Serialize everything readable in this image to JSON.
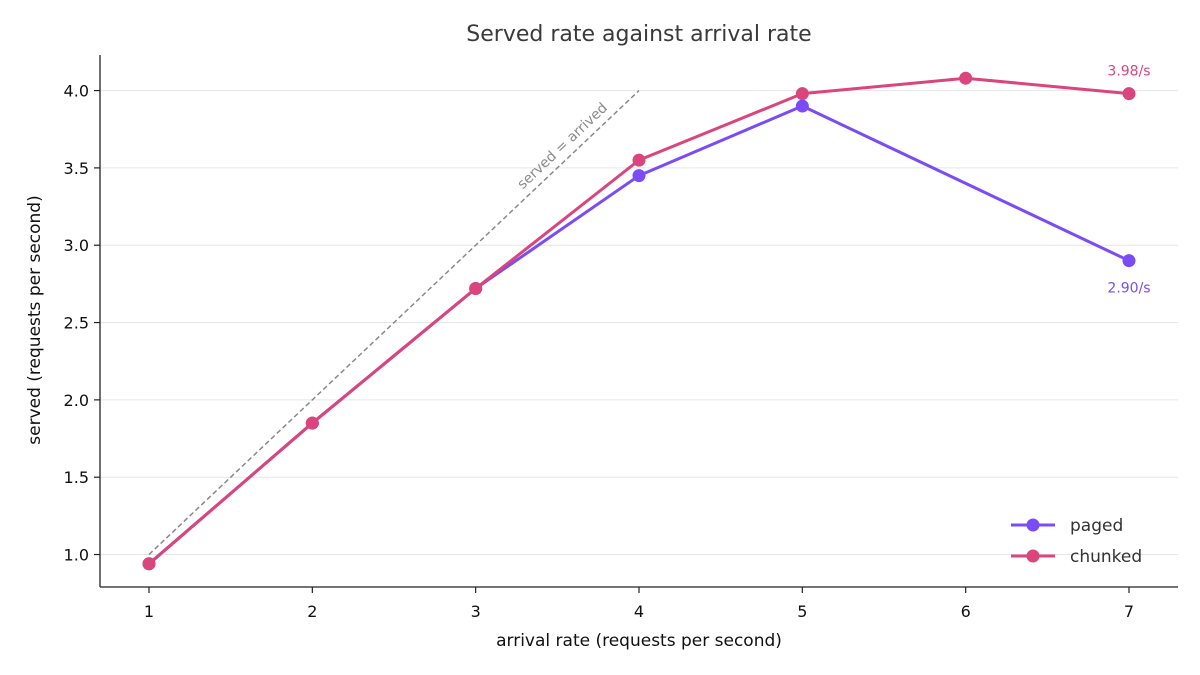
{
  "chart_data": {
    "type": "line",
    "title": "Served rate against arrival rate",
    "xlabel": "arrival rate (requests per second)",
    "ylabel": "served (requests per second)",
    "x": [
      1,
      2,
      3,
      4,
      5,
      6,
      7
    ],
    "xlim": [
      0.7,
      7.3
    ],
    "ylim": [
      0.79,
      4.23
    ],
    "xticks": [
      "1",
      "2",
      "3",
      "4",
      "5",
      "6",
      "7"
    ],
    "yticks": [
      "1.0",
      "1.5",
      "2.0",
      "2.5",
      "3.0",
      "3.5",
      "4.0"
    ],
    "grid": "horizontal",
    "legend_position": "lower-right",
    "series": [
      {
        "name": "paged",
        "color": "#7a4cf5",
        "x": [
          1,
          2,
          3,
          4,
          5,
          7
        ],
        "values": [
          0.94,
          1.85,
          2.72,
          3.45,
          3.9,
          2.9
        ],
        "end_label": "2.90/s"
      },
      {
        "name": "chunked",
        "color": "#d9457c",
        "x": [
          1,
          2,
          3,
          4,
          5,
          6,
          7
        ],
        "values": [
          0.94,
          1.85,
          2.72,
          3.55,
          3.98,
          4.08,
          3.98
        ],
        "end_label": "3.98/s"
      }
    ],
    "reference_line": {
      "label": "served = arrived",
      "x": [
        1,
        4
      ],
      "y": [
        1,
        4
      ],
      "color": "#888888"
    }
  }
}
